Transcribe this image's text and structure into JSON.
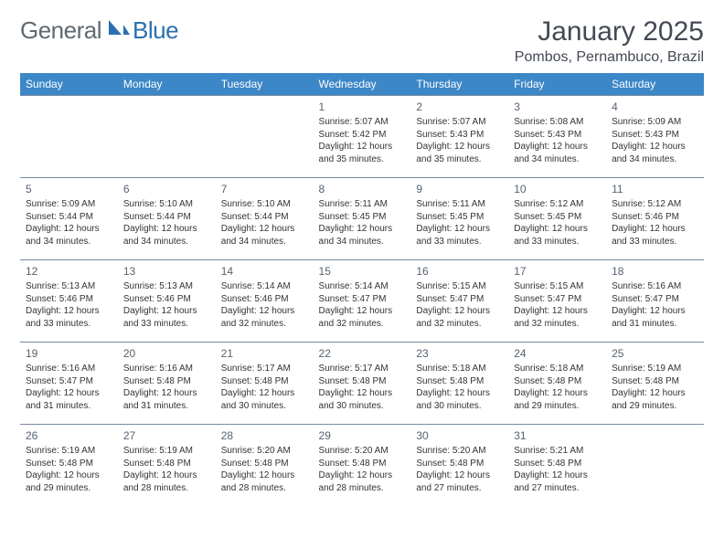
{
  "logo": {
    "part1": "General",
    "part2": "Blue"
  },
  "brand_colors": {
    "header_bg": "#3c87c7",
    "text": "#333333",
    "logo_gray": "#5f6a72",
    "logo_blue": "#2b6fb0"
  },
  "title": "January 2025",
  "location": "Pombos, Pernambuco, Brazil",
  "day_headers": [
    "Sunday",
    "Monday",
    "Tuesday",
    "Wednesday",
    "Thursday",
    "Friday",
    "Saturday"
  ],
  "weeks": [
    [
      null,
      null,
      null,
      {
        "n": "1",
        "sr": "5:07 AM",
        "ss": "5:42 PM",
        "dl": "12 hours and 35 minutes."
      },
      {
        "n": "2",
        "sr": "5:07 AM",
        "ss": "5:43 PM",
        "dl": "12 hours and 35 minutes."
      },
      {
        "n": "3",
        "sr": "5:08 AM",
        "ss": "5:43 PM",
        "dl": "12 hours and 34 minutes."
      },
      {
        "n": "4",
        "sr": "5:09 AM",
        "ss": "5:43 PM",
        "dl": "12 hours and 34 minutes."
      }
    ],
    [
      {
        "n": "5",
        "sr": "5:09 AM",
        "ss": "5:44 PM",
        "dl": "12 hours and 34 minutes."
      },
      {
        "n": "6",
        "sr": "5:10 AM",
        "ss": "5:44 PM",
        "dl": "12 hours and 34 minutes."
      },
      {
        "n": "7",
        "sr": "5:10 AM",
        "ss": "5:44 PM",
        "dl": "12 hours and 34 minutes."
      },
      {
        "n": "8",
        "sr": "5:11 AM",
        "ss": "5:45 PM",
        "dl": "12 hours and 34 minutes."
      },
      {
        "n": "9",
        "sr": "5:11 AM",
        "ss": "5:45 PM",
        "dl": "12 hours and 33 minutes."
      },
      {
        "n": "10",
        "sr": "5:12 AM",
        "ss": "5:45 PM",
        "dl": "12 hours and 33 minutes."
      },
      {
        "n": "11",
        "sr": "5:12 AM",
        "ss": "5:46 PM",
        "dl": "12 hours and 33 minutes."
      }
    ],
    [
      {
        "n": "12",
        "sr": "5:13 AM",
        "ss": "5:46 PM",
        "dl": "12 hours and 33 minutes."
      },
      {
        "n": "13",
        "sr": "5:13 AM",
        "ss": "5:46 PM",
        "dl": "12 hours and 33 minutes."
      },
      {
        "n": "14",
        "sr": "5:14 AM",
        "ss": "5:46 PM",
        "dl": "12 hours and 32 minutes."
      },
      {
        "n": "15",
        "sr": "5:14 AM",
        "ss": "5:47 PM",
        "dl": "12 hours and 32 minutes."
      },
      {
        "n": "16",
        "sr": "5:15 AM",
        "ss": "5:47 PM",
        "dl": "12 hours and 32 minutes."
      },
      {
        "n": "17",
        "sr": "5:15 AM",
        "ss": "5:47 PM",
        "dl": "12 hours and 32 minutes."
      },
      {
        "n": "18",
        "sr": "5:16 AM",
        "ss": "5:47 PM",
        "dl": "12 hours and 31 minutes."
      }
    ],
    [
      {
        "n": "19",
        "sr": "5:16 AM",
        "ss": "5:47 PM",
        "dl": "12 hours and 31 minutes."
      },
      {
        "n": "20",
        "sr": "5:16 AM",
        "ss": "5:48 PM",
        "dl": "12 hours and 31 minutes."
      },
      {
        "n": "21",
        "sr": "5:17 AM",
        "ss": "5:48 PM",
        "dl": "12 hours and 30 minutes."
      },
      {
        "n": "22",
        "sr": "5:17 AM",
        "ss": "5:48 PM",
        "dl": "12 hours and 30 minutes."
      },
      {
        "n": "23",
        "sr": "5:18 AM",
        "ss": "5:48 PM",
        "dl": "12 hours and 30 minutes."
      },
      {
        "n": "24",
        "sr": "5:18 AM",
        "ss": "5:48 PM",
        "dl": "12 hours and 29 minutes."
      },
      {
        "n": "25",
        "sr": "5:19 AM",
        "ss": "5:48 PM",
        "dl": "12 hours and 29 minutes."
      }
    ],
    [
      {
        "n": "26",
        "sr": "5:19 AM",
        "ss": "5:48 PM",
        "dl": "12 hours and 29 minutes."
      },
      {
        "n": "27",
        "sr": "5:19 AM",
        "ss": "5:48 PM",
        "dl": "12 hours and 28 minutes."
      },
      {
        "n": "28",
        "sr": "5:20 AM",
        "ss": "5:48 PM",
        "dl": "12 hours and 28 minutes."
      },
      {
        "n": "29",
        "sr": "5:20 AM",
        "ss": "5:48 PM",
        "dl": "12 hours and 28 minutes."
      },
      {
        "n": "30",
        "sr": "5:20 AM",
        "ss": "5:48 PM",
        "dl": "12 hours and 27 minutes."
      },
      {
        "n": "31",
        "sr": "5:21 AM",
        "ss": "5:48 PM",
        "dl": "12 hours and 27 minutes."
      },
      null
    ]
  ],
  "labels": {
    "sunrise": "Sunrise: ",
    "sunset": "Sunset: ",
    "daylight": "Daylight: "
  }
}
